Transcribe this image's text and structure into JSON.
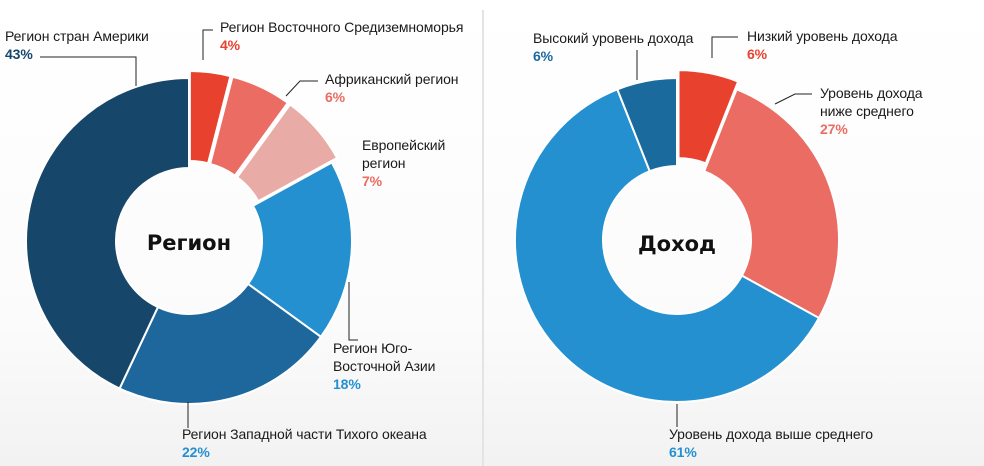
{
  "chart_data": [
    {
      "type": "donut",
      "title": "Регион",
      "colors": {
        "americas": "#17466b",
        "western_pacific": "#1d679d",
        "southeast_asia": "#2490cf",
        "europe": "#e8aba5",
        "africa": "#ea6c62",
        "eastern_mediterranean": "#e8412e"
      },
      "slices": [
        {
          "key": "eastern_mediterranean",
          "label": "Регион Восточного Средиземноморья",
          "percent_label": "4%",
          "value": 4,
          "exploded": true
        },
        {
          "key": "africa",
          "label": "Африканский регион",
          "percent_label": "6%",
          "value": 6,
          "exploded": true
        },
        {
          "key": "europe",
          "label": "Европейский регион",
          "percent_label": "7%",
          "value": 7,
          "exploded": true
        },
        {
          "key": "southeast_asia",
          "label": "Регион Юго-Восточной Азии",
          "percent_label": "18%",
          "value": 18,
          "exploded": false
        },
        {
          "key": "western_pacific",
          "label": "Регион Западной части Тихого океана",
          "percent_label": "22%",
          "value": 22,
          "exploded": false
        },
        {
          "key": "americas",
          "label": "Регион стран Америки",
          "percent_label": "43%",
          "value": 43,
          "exploded": false
        }
      ],
      "label_lines": {
        "eastern_mediterranean": [
          "Регион Восточного Средиземноморья"
        ],
        "africa": [
          "Африканский регион"
        ],
        "europe": [
          "Европейский",
          "регион"
        ],
        "southeast_asia": [
          "Регион Юго-",
          "Восточной Азии"
        ],
        "western_pacific": [
          "Регион Западной части Тихого океана"
        ],
        "americas": [
          "Регион стран Америки"
        ]
      }
    },
    {
      "type": "donut",
      "title": "Доход",
      "colors": {
        "low": "#e8412e",
        "lower_middle": "#ea6c62",
        "upper_middle": "#2490cf",
        "high": "#1a6a9d"
      },
      "slices": [
        {
          "key": "low",
          "label": "Низкий уровень дохода",
          "percent_label": "6%",
          "value": 6,
          "exploded": true
        },
        {
          "key": "lower_middle",
          "label": "Уровень дохода ниже среднего",
          "percent_label": "27%",
          "value": 27,
          "exploded": false
        },
        {
          "key": "upper_middle",
          "label": "Уровень дохода выше среднего",
          "percent_label": "61%",
          "value": 61,
          "exploded": false
        },
        {
          "key": "high",
          "label": "Высокий уровень дохода",
          "percent_label": "6%",
          "value": 6,
          "exploded": false
        }
      ],
      "label_lines": {
        "low": [
          "Низкий уровень дохода"
        ],
        "lower_middle": [
          "Уровень дохода",
          "ниже среднего"
        ],
        "upper_middle": [
          "Уровень дохода выше среднего"
        ],
        "high": [
          "Высокий уровень дохода"
        ]
      }
    }
  ]
}
